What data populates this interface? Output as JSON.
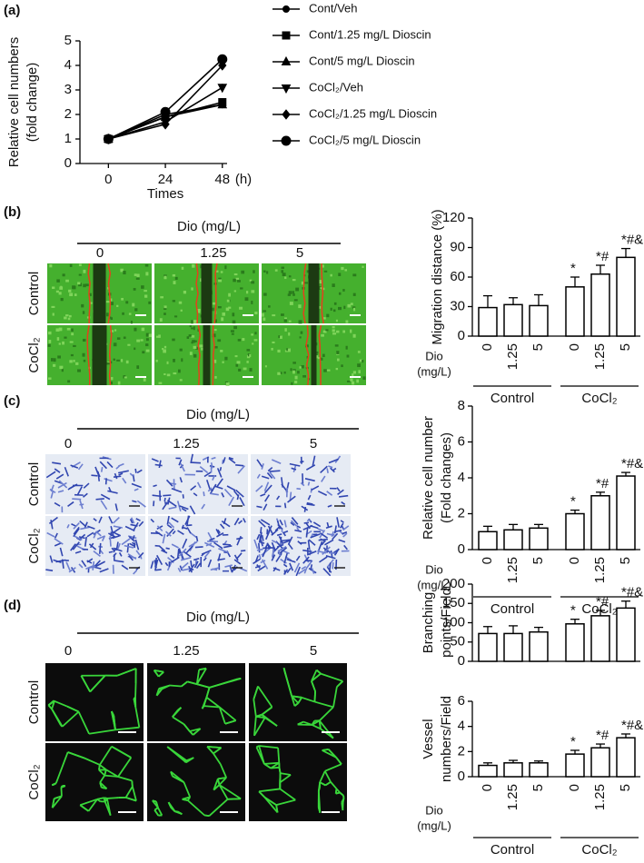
{
  "panel_labels": [
    "(a)",
    "(b)",
    "(c)",
    "(d)"
  ],
  "image_panels": [
    {
      "title": "Dio (mg/L)",
      "doses": [
        "0",
        "1.25",
        "5"
      ],
      "rows": [
        "Control",
        "CoCl₂"
      ]
    },
    {
      "title": "Dio (mg/L)",
      "doses": [
        "0",
        "1.25",
        "5"
      ],
      "rows": [
        "Control",
        "CoCl₂"
      ]
    },
    {
      "title": "Dio (mg/L)",
      "doses": [
        "0",
        "1.25",
        "5"
      ],
      "rows": [
        "Control",
        "CoCl₂"
      ]
    }
  ],
  "chart_data": [
    {
      "type": "line",
      "ylabel": [
        "Relative cell numbers",
        "(fold change)"
      ],
      "xlabel": "Times",
      "x_unit": "(h)",
      "x": [
        0,
        24,
        48
      ],
      "xlim": [
        -12,
        50
      ],
      "xticks": [
        0,
        24,
        48
      ],
      "ylim": [
        0,
        5
      ],
      "yticks": [
        0,
        1,
        2,
        3,
        4,
        5
      ],
      "color": "#000000",
      "series": [
        {
          "name": "Cont/Veh",
          "marker": "circle",
          "values": [
            1,
            2.0,
            2.4
          ],
          "errors": [
            0.12,
            0.1,
            0.12
          ]
        },
        {
          "name": "Cont/1.25 mg/L Dioscin",
          "marker": "square",
          "values": [
            1,
            1.9,
            2.5
          ],
          "errors": [
            0.12,
            0.1,
            0.12
          ]
        },
        {
          "name": "Cont/5 mg/L Dioscin",
          "marker": "triangle-up",
          "values": [
            1,
            1.9,
            2.4
          ],
          "errors": [
            0.12,
            0.1,
            0.12
          ]
        },
        {
          "name": "CoCl₂/Veh",
          "marker": "triangle-down",
          "values": [
            1,
            1.7,
            3.1
          ],
          "errors": [
            0.12,
            0.12,
            0.15
          ]
        },
        {
          "name": "CoCl₂/1.25 mg/L Dioscin",
          "marker": "diamond",
          "values": [
            1,
            1.6,
            4.0
          ],
          "errors": [
            0.12,
            0.12,
            0.15
          ]
        },
        {
          "name": "CoCl₂/5 mg/L Dioscin",
          "marker": "big-circle",
          "values": [
            1,
            2.1,
            4.25
          ],
          "errors": [
            0.12,
            0.1,
            0.12
          ]
        }
      ]
    },
    {
      "type": "bar",
      "ylabel": [
        "Migration distance (%)"
      ],
      "ylim": [
        0,
        120
      ],
      "yticks": [
        0,
        30,
        60,
        90,
        120
      ],
      "dose_label": [
        "Dio",
        "(mg/L)"
      ],
      "groups": [
        {
          "name": "Control",
          "categories": [
            "0",
            "1.25",
            "5"
          ],
          "values": [
            29,
            32,
            31
          ],
          "errors": [
            12,
            7,
            11
          ],
          "significance": [
            null,
            null,
            null
          ]
        },
        {
          "name": "CoCl₂",
          "categories": [
            "0",
            "1.25",
            "5"
          ],
          "values": [
            50,
            63,
            80
          ],
          "errors": [
            10,
            9,
            9
          ],
          "significance": [
            "*",
            "*#",
            "*#&"
          ]
        }
      ]
    },
    {
      "type": "bar",
      "ylabel": [
        "Relative cell number",
        "(Fold  changes)"
      ],
      "ylim": [
        0,
        8
      ],
      "yticks": [
        0,
        2,
        4,
        6,
        8
      ],
      "dose_label": [
        "Dio",
        "(mg/L)"
      ],
      "groups": [
        {
          "name": "Control",
          "categories": [
            "0",
            "1.25",
            "5"
          ],
          "values": [
            1.0,
            1.1,
            1.2
          ],
          "errors": [
            0.3,
            0.3,
            0.2
          ],
          "significance": [
            null,
            null,
            null
          ]
        },
        {
          "name": "CoCl₂",
          "categories": [
            "0",
            "1.25",
            "5"
          ],
          "values": [
            2.0,
            3.0,
            4.1
          ],
          "errors": [
            0.2,
            0.2,
            0.2
          ],
          "significance": [
            "*",
            "*#",
            "*#&"
          ]
        }
      ]
    },
    {
      "type": "bar",
      "ylabel": [
        "Branching",
        "points/Field"
      ],
      "ylim": [
        0,
        200
      ],
      "yticks": [
        0,
        50,
        100,
        150,
        200
      ],
      "groups": [
        {
          "values": [
            72,
            72,
            76
          ],
          "errors": [
            18,
            20,
            12
          ],
          "significance": [
            null,
            null,
            null
          ]
        },
        {
          "values": [
            97,
            118,
            138
          ],
          "errors": [
            12,
            14,
            18
          ],
          "significance": [
            "*",
            "*#",
            "*#&"
          ]
        }
      ]
    },
    {
      "type": "bar",
      "ylabel": [
        "Vessel",
        "numbers/Field"
      ],
      "ylim": [
        0,
        6
      ],
      "yticks": [
        0,
        2,
        4,
        6
      ],
      "dose_label": [
        "Dio",
        "(mg/L)"
      ],
      "groups": [
        {
          "name": "Control",
          "categories": [
            "0",
            "1.25",
            "5"
          ],
          "values": [
            0.9,
            1.1,
            1.1
          ],
          "errors": [
            0.2,
            0.2,
            0.15
          ],
          "significance": [
            null,
            null,
            null
          ]
        },
        {
          "name": "CoCl₂",
          "categories": [
            "0",
            "1.25",
            "5"
          ],
          "values": [
            1.8,
            2.3,
            3.1
          ],
          "errors": [
            0.3,
            0.3,
            0.3
          ],
          "significance": [
            "*",
            "*#",
            "*#&"
          ]
        }
      ]
    }
  ]
}
